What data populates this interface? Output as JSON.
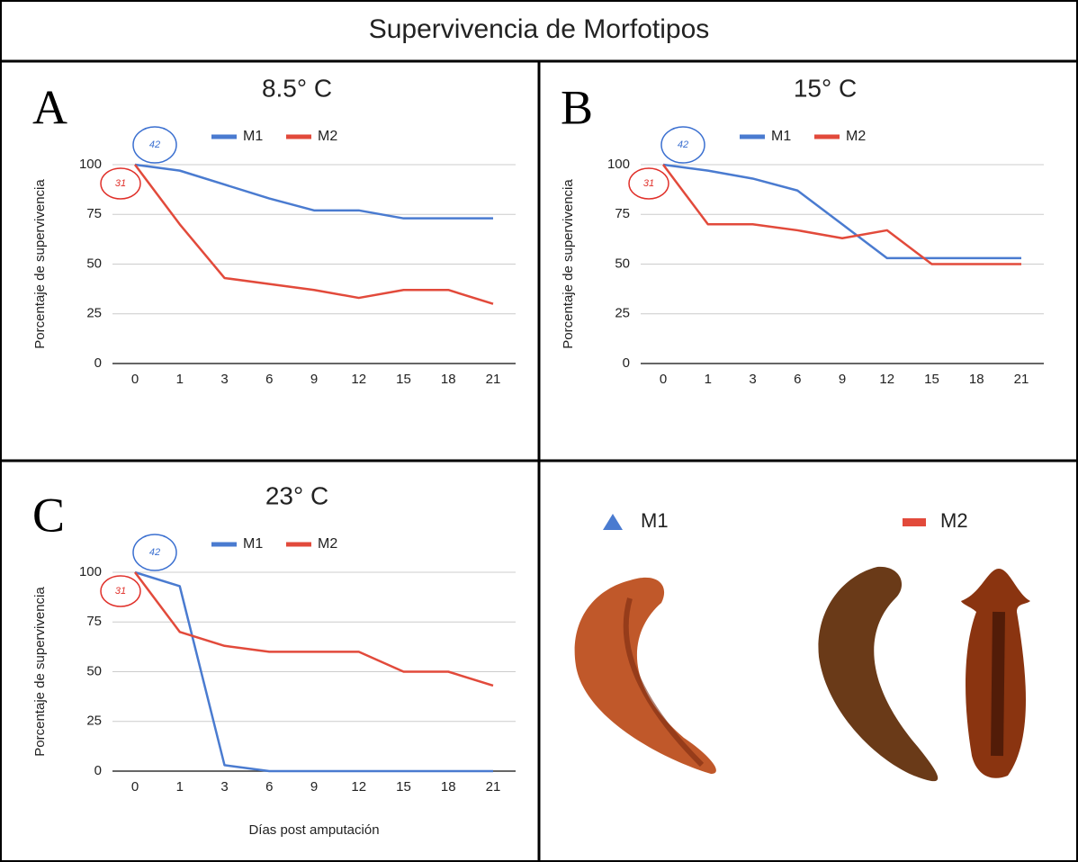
{
  "title": "Supervivencia de Morfotipos",
  "chart_data": [
    {
      "type": "line",
      "label": "A",
      "title": "8.5° C",
      "ylabel": "Porcentaje de supervivencia",
      "annotations": [
        "42",
        "31"
      ],
      "categories": [
        "0",
        "1",
        "3",
        "6",
        "9",
        "12",
        "15",
        "18",
        "21"
      ],
      "series": [
        {
          "name": "M1",
          "color": "#4a7bd0",
          "values": [
            100,
            97,
            90,
            83,
            77,
            77,
            73,
            73,
            73
          ]
        },
        {
          "name": "M2",
          "color": "#e24a3b",
          "values": [
            100,
            70,
            43,
            40,
            37,
            33,
            37,
            37,
            30
          ]
        }
      ],
      "ylim": [
        0,
        100
      ],
      "yticks": [
        0,
        25,
        50,
        75,
        100
      ],
      "grid": true
    },
    {
      "type": "line",
      "label": "B",
      "title": "15° C",
      "ylabel": "Porcentaje de supervivencia",
      "annotations": [
        "42",
        "31"
      ],
      "categories": [
        "0",
        "1",
        "3",
        "6",
        "9",
        "12",
        "15",
        "18",
        "21"
      ],
      "series": [
        {
          "name": "M1",
          "color": "#4a7bd0",
          "values": [
            100,
            97,
            93,
            87,
            70,
            53,
            53,
            53,
            53
          ]
        },
        {
          "name": "M2",
          "color": "#e24a3b",
          "values": [
            100,
            70,
            70,
            67,
            63,
            67,
            50,
            50,
            50
          ]
        }
      ],
      "ylim": [
        0,
        100
      ],
      "yticks": [
        0,
        25,
        50,
        75,
        100
      ],
      "grid": true
    },
    {
      "type": "line",
      "label": "C",
      "title": "23° C",
      "ylabel": "Porcentaje de supervivencia",
      "xlabel": "Días post amputación",
      "annotations": [
        "42",
        "31"
      ],
      "categories": [
        "0",
        "1",
        "3",
        "6",
        "9",
        "12",
        "15",
        "18",
        "21"
      ],
      "series": [
        {
          "name": "M1",
          "color": "#4a7bd0",
          "values": [
            100,
            93,
            3,
            0,
            0,
            0,
            0,
            0,
            0
          ]
        },
        {
          "name": "M2",
          "color": "#e24a3b",
          "values": [
            100,
            70,
            63,
            60,
            60,
            60,
            50,
            50,
            43
          ]
        }
      ],
      "ylim": [
        0,
        100
      ],
      "yticks": [
        0,
        25,
        50,
        75,
        100
      ],
      "grid": true
    }
  ],
  "legend_panel": {
    "items": [
      {
        "name": "M1",
        "color": "#4a7bd0"
      },
      {
        "name": "M2",
        "color": "#e24a3b"
      }
    ]
  }
}
